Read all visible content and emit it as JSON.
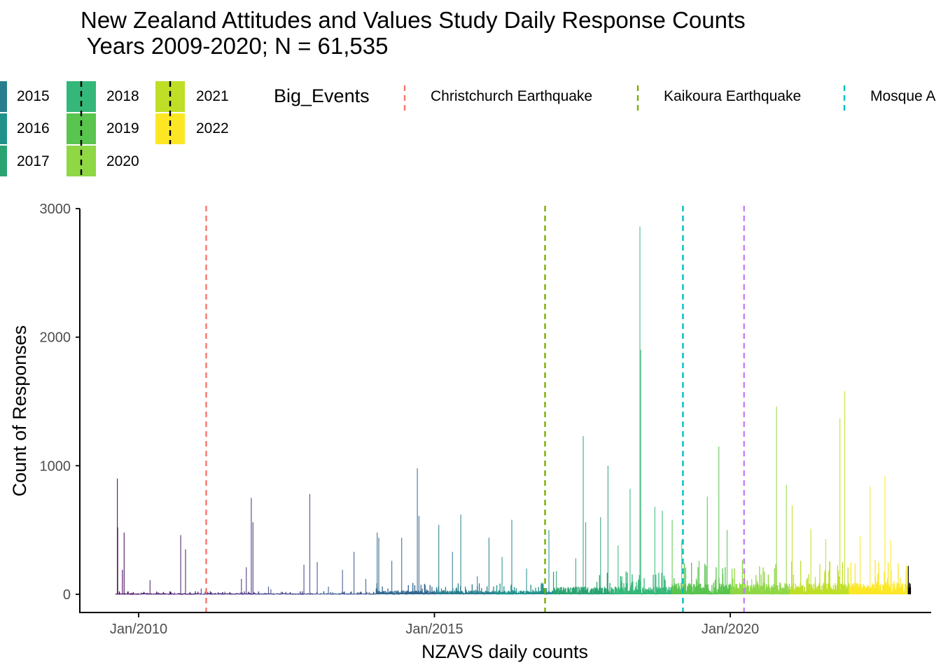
{
  "title_line1": "New Zealand Attitudes and Values Study Daily Response Counts",
  "title_line2": " Years 2009-2020; N = 61,535",
  "legend_years": [
    {
      "year": "2015",
      "color": "#277F8E"
    },
    {
      "year": "2016",
      "color": "#21918C"
    },
    {
      "year": "2017",
      "color": "#2AA371"
    },
    {
      "year": "2018",
      "color": "#35B779"
    },
    {
      "year": "2019",
      "color": "#59C44E"
    },
    {
      "year": "2020",
      "color": "#8FD744"
    },
    {
      "year": "2021",
      "color": "#BEDF26"
    },
    {
      "year": "2022",
      "color": "#FDE725"
    }
  ],
  "legend_events": {
    "title": "Big_Events",
    "items": [
      {
        "label": "Christchurch Earthquake",
        "color": "#F8766D"
      },
      {
        "label": "Kaikoura Earthquake",
        "color": "#7CAE00"
      },
      {
        "label": "Mosque A",
        "color": "#00BFC4"
      }
    ]
  },
  "chart_data": {
    "type": "bar",
    "xlabel": "NZAVS daily counts",
    "ylabel": "Count of Responses",
    "ylim": [
      -130,
      3000
    ],
    "y_ticks": [
      "0",
      "1000",
      "2000",
      "3000"
    ],
    "x_ticks": [
      "Jan/2010",
      "Jan/2015",
      "Jan/2020"
    ],
    "x_range": [
      "2009-01-01",
      "2023-06-30"
    ],
    "event_lines": [
      {
        "date": "2011-02-22",
        "color": "#F8766D"
      },
      {
        "date": "2016-11-14",
        "color": "#7CAE00"
      },
      {
        "date": "2019-03-15",
        "color": "#00BFC4"
      },
      {
        "date": "2020-03-26",
        "color": "#C77CFF"
      }
    ],
    "year_colors": {
      "2009": "#440154",
      "2010": "#481A6C",
      "2011": "#472F7D",
      "2012": "#414487",
      "2013": "#39568C",
      "2014": "#31688E",
      "2015": "#277F8E",
      "2016": "#21918C",
      "2017": "#2AA371",
      "2018": "#35B779",
      "2019": "#59C44E",
      "2020": "#8FD744",
      "2021": "#BEDF26",
      "2022": "#FDE725"
    },
    "spikes": [
      {
        "date": "2009-08-20",
        "value": 900
      },
      {
        "date": "2009-08-22",
        "value": 520
      },
      {
        "date": "2009-10-01",
        "value": 480
      },
      {
        "date": "2009-09-20",
        "value": 190
      },
      {
        "date": "2010-03-10",
        "value": 110
      },
      {
        "date": "2010-09-15",
        "value": 460
      },
      {
        "date": "2010-10-15",
        "value": 350
      },
      {
        "date": "2011-01-20",
        "value": 45
      },
      {
        "date": "2011-06-15",
        "value": 20
      },
      {
        "date": "2011-09-25",
        "value": 120
      },
      {
        "date": "2011-10-25",
        "value": 210
      },
      {
        "date": "2011-11-25",
        "value": 750
      },
      {
        "date": "2011-12-05",
        "value": 560
      },
      {
        "date": "2012-03-10",
        "value": 60
      },
      {
        "date": "2012-03-25",
        "value": 40
      },
      {
        "date": "2012-10-15",
        "value": 230
      },
      {
        "date": "2012-11-20",
        "value": 780
      },
      {
        "date": "2013-01-05",
        "value": 250
      },
      {
        "date": "2013-03-15",
        "value": 60
      },
      {
        "date": "2013-06-10",
        "value": 190
      },
      {
        "date": "2013-08-20",
        "value": 330
      },
      {
        "date": "2013-11-01",
        "value": 120
      },
      {
        "date": "2014-01-10",
        "value": 480
      },
      {
        "date": "2014-01-20",
        "value": 440
      },
      {
        "date": "2014-04-10",
        "value": 260
      },
      {
        "date": "2014-06-10",
        "value": 440
      },
      {
        "date": "2014-09-15",
        "value": 980
      },
      {
        "date": "2014-09-25",
        "value": 610
      },
      {
        "date": "2015-01-25",
        "value": 540
      },
      {
        "date": "2015-04-20",
        "value": 330
      },
      {
        "date": "2015-06-10",
        "value": 620
      },
      {
        "date": "2015-09-20",
        "value": 140
      },
      {
        "date": "2015-12-01",
        "value": 440
      },
      {
        "date": "2016-02-20",
        "value": 290
      },
      {
        "date": "2016-04-20",
        "value": 580
      },
      {
        "date": "2016-07-20",
        "value": 200
      },
      {
        "date": "2016-10-20",
        "value": 90
      },
      {
        "date": "2016-12-05",
        "value": 500
      },
      {
        "date": "2017-01-20",
        "value": 180
      },
      {
        "date": "2017-05-20",
        "value": 280
      },
      {
        "date": "2017-07-05",
        "value": 1230
      },
      {
        "date": "2017-07-20",
        "value": 560
      },
      {
        "date": "2017-10-20",
        "value": 600
      },
      {
        "date": "2017-12-05",
        "value": 1000
      },
      {
        "date": "2018-02-05",
        "value": 380
      },
      {
        "date": "2018-04-20",
        "value": 820
      },
      {
        "date": "2018-06-20",
        "value": 2860
      },
      {
        "date": "2018-06-25",
        "value": 1900
      },
      {
        "date": "2018-09-20",
        "value": 680
      },
      {
        "date": "2018-11-05",
        "value": 650
      },
      {
        "date": "2019-01-05",
        "value": 580
      },
      {
        "date": "2019-03-05",
        "value": 420
      },
      {
        "date": "2019-06-20",
        "value": 260
      },
      {
        "date": "2019-08-10",
        "value": 760
      },
      {
        "date": "2019-10-20",
        "value": 1150
      },
      {
        "date": "2019-12-10",
        "value": 500
      },
      {
        "date": "2020-05-10",
        "value": 120
      },
      {
        "date": "2020-10-10",
        "value": 1460
      },
      {
        "date": "2020-12-10",
        "value": 850
      },
      {
        "date": "2021-01-15",
        "value": 690
      },
      {
        "date": "2021-05-10",
        "value": 510
      },
      {
        "date": "2021-08-10",
        "value": 430
      },
      {
        "date": "2021-11-05",
        "value": 1370
      },
      {
        "date": "2021-12-05",
        "value": 1580
      },
      {
        "date": "2022-03-10",
        "value": 450
      },
      {
        "date": "2022-05-10",
        "value": 840
      },
      {
        "date": "2022-08-10",
        "value": 920
      },
      {
        "date": "2022-09-15",
        "value": 420
      },
      {
        "date": "2022-12-15",
        "value": 80
      }
    ]
  }
}
